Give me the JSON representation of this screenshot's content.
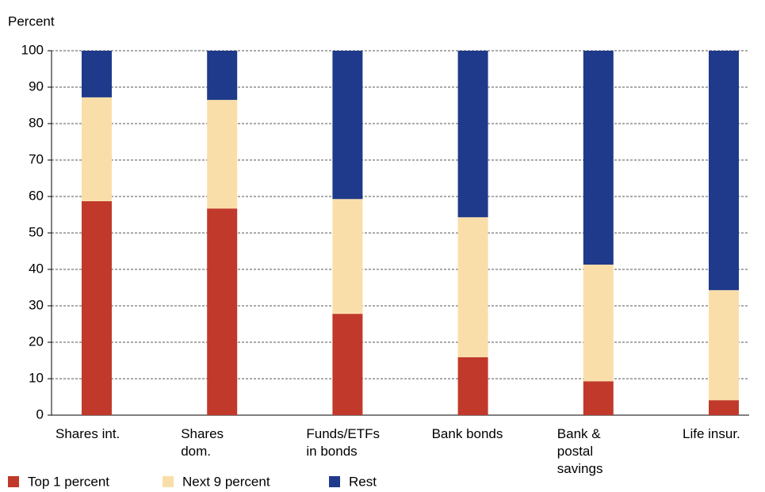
{
  "chart_data": {
    "type": "stacked_bar",
    "y_label": "Percent",
    "categories": [
      "Shares int.",
      "Shares dom.",
      "Funds/ETFs in bonds",
      "Bank bonds",
      "Bank & postal savings",
      "Life insur."
    ],
    "series": [
      {
        "name": "Top 1 percent",
        "color": "#c0392b",
        "values": [
          58.7,
          56.7,
          27.8,
          15.9,
          9.3,
          4.1
        ]
      },
      {
        "name": "Next 9 percent",
        "color": "#fadeaa",
        "values": [
          28.5,
          29.8,
          31.5,
          38.4,
          32.0,
          30.2
        ]
      },
      {
        "name": "Rest",
        "color": "#1f3a8a",
        "values": [
          12.8,
          13.5,
          40.7,
          45.7,
          58.7,
          65.7
        ]
      }
    ],
    "ylim": [
      0,
      100
    ],
    "yticks": [
      0,
      10,
      20,
      30,
      40,
      50,
      60,
      70,
      80,
      90,
      100
    ],
    "grid": true
  }
}
